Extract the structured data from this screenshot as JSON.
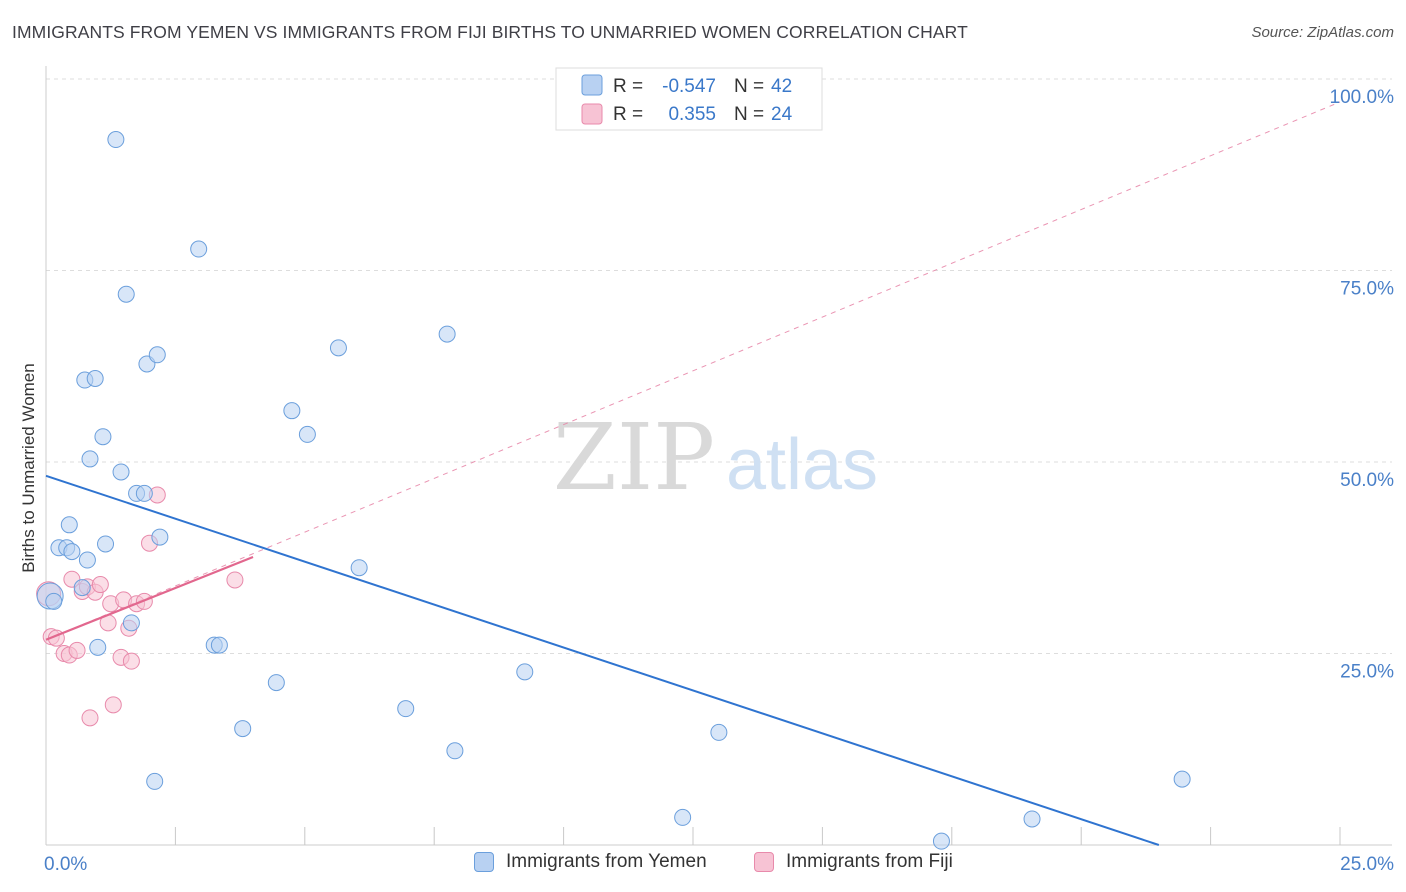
{
  "header": {
    "title": "IMMIGRANTS FROM YEMEN VS IMMIGRANTS FROM FIJI BIRTHS TO UNMARRIED WOMEN CORRELATION CHART",
    "source": "Source: ZipAtlas.com"
  },
  "watermark": {
    "zip": "ZIP",
    "atlas": "atlas"
  },
  "colors": {
    "yemen_fill": "#b8d1f2",
    "yemen_stroke": "#6b9fdc",
    "yemen_line": "#2f74d0",
    "fiji_fill": "#f7c3d4",
    "fiji_stroke": "#e88aab",
    "fiji_line": "#e2678e",
    "axis_label": "#4a80c8",
    "grid": "#dddddd"
  },
  "legend": {
    "yemen": {
      "r_label": "R =",
      "r_value": "-0.547",
      "n_label": "N =",
      "n_value": "42"
    },
    "fiji": {
      "r_label": "R =",
      "r_value": "0.355",
      "n_label": "N =",
      "n_value": "24"
    }
  },
  "bottom_legend": {
    "yemen": "Immigrants from Yemen",
    "fiji": "Immigrants from Fiji"
  },
  "chart_data": {
    "type": "scatter",
    "title": "IMMIGRANTS FROM YEMEN VS IMMIGRANTS FROM FIJI BIRTHS TO UNMARRIED WOMEN CORRELATION CHART",
    "xlabel": "",
    "ylabel": "Births to Unmarried Women",
    "xlim": [
      0,
      25
    ],
    "ylim": [
      0,
      100
    ],
    "x_tick_labels": [
      {
        "value": 0,
        "label": "0.0%"
      },
      {
        "value": 25,
        "label": "25.0%"
      }
    ],
    "y_tick_labels": [
      {
        "value": 25,
        "label": "25.0%"
      },
      {
        "value": 50,
        "label": "50.0%"
      },
      {
        "value": 75,
        "label": "75.0%"
      },
      {
        "value": 100,
        "label": "100.0%"
      }
    ],
    "x_minor_ticks": [
      2.5,
      5,
      7.5,
      10,
      12.5,
      15,
      17.5,
      20,
      22.5,
      25
    ],
    "grid": true,
    "legend_position": "top-center",
    "series": [
      {
        "name": "Immigrants from Yemen",
        "r": -0.547,
        "n": 42,
        "points": [
          [
            0.08,
            32.5
          ],
          [
            0.15,
            31.8
          ],
          [
            0.25,
            38.8
          ],
          [
            0.4,
            38.8
          ],
          [
            0.45,
            41.8
          ],
          [
            0.5,
            38.3
          ],
          [
            0.7,
            33.6
          ],
          [
            0.75,
            60.7
          ],
          [
            0.8,
            37.2
          ],
          [
            0.85,
            50.4
          ],
          [
            0.95,
            60.9
          ],
          [
            1.0,
            25.8
          ],
          [
            1.1,
            53.3
          ],
          [
            1.15,
            39.3
          ],
          [
            1.35,
            92.1
          ],
          [
            1.45,
            48.7
          ],
          [
            1.55,
            71.9
          ],
          [
            1.65,
            29.0
          ],
          [
            1.75,
            45.9
          ],
          [
            1.9,
            45.9
          ],
          [
            1.95,
            62.8
          ],
          [
            2.15,
            64.0
          ],
          [
            2.2,
            40.2
          ],
          [
            2.1,
            8.3
          ],
          [
            2.95,
            77.8
          ],
          [
            3.25,
            26.1
          ],
          [
            3.35,
            26.1
          ],
          [
            3.8,
            15.2
          ],
          [
            4.45,
            21.2
          ],
          [
            4.75,
            56.7
          ],
          [
            5.05,
            53.6
          ],
          [
            5.65,
            64.9
          ],
          [
            6.05,
            36.2
          ],
          [
            6.95,
            17.8
          ],
          [
            7.75,
            66.7
          ],
          [
            7.9,
            12.3
          ],
          [
            9.25,
            22.6
          ],
          [
            12.3,
            3.6
          ],
          [
            13.0,
            14.7
          ],
          [
            17.3,
            0.5
          ],
          [
            19.05,
            3.4
          ],
          [
            21.95,
            8.6
          ]
        ],
        "trend": {
          "x": [
            0,
            21.5
          ],
          "y": [
            48.2,
            0
          ]
        }
      },
      {
        "name": "Immigrants from Fiji",
        "r": 0.355,
        "n": 24,
        "points": [
          [
            0.05,
            32.8
          ],
          [
            0.1,
            27.2
          ],
          [
            0.2,
            27.0
          ],
          [
            0.35,
            25.0
          ],
          [
            0.45,
            24.8
          ],
          [
            0.5,
            34.7
          ],
          [
            0.6,
            25.4
          ],
          [
            0.7,
            33.1
          ],
          [
            0.8,
            33.7
          ],
          [
            0.85,
            16.6
          ],
          [
            0.95,
            33.0
          ],
          [
            1.05,
            34.0
          ],
          [
            1.2,
            29.0
          ],
          [
            1.25,
            31.5
          ],
          [
            1.3,
            18.3
          ],
          [
            1.45,
            24.5
          ],
          [
            1.5,
            32.0
          ],
          [
            1.6,
            28.3
          ],
          [
            1.65,
            24.0
          ],
          [
            1.75,
            31.5
          ],
          [
            1.9,
            31.8
          ],
          [
            2.0,
            39.4
          ],
          [
            2.15,
            45.7
          ],
          [
            3.65,
            34.6
          ]
        ],
        "trend": {
          "x": [
            0,
            4.0
          ],
          "y": [
            26.8,
            37.6
          ]
        },
        "trend_extended": {
          "x": [
            0,
            25
          ],
          "y": [
            26.8,
            97
          ]
        }
      }
    ]
  }
}
